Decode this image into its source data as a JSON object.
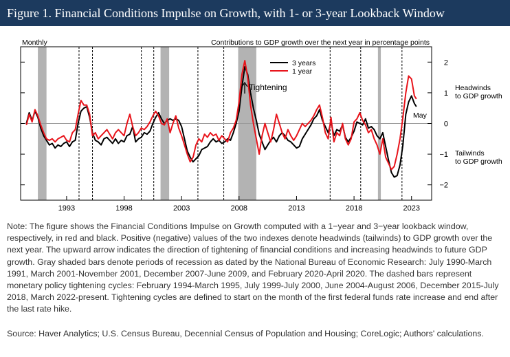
{
  "figure_title": "Figure 1. Financial Conditions Impulse on Growth, with 1- or 3-year Lookback Window",
  "note": "Note: The figure shows the Financial Conditions Impulse on Growth computed with a 1−year and 3−year lookback window, respectively, in red and black. Positive (negative) values of the two indexes denote headwinds (tailwinds) to GDP growth over the next year. The upward arrow indicates the direction of tightening of financial conditions and increasing headwinds to future GDP growth. Gray shaded bars denote periods of recession as dated by the National Bureau of Economic Research: July 1990-March 1991, March 2001-November 2001, December 2007-June 2009, and February 2020-April 2020. The dashed bars represent monetary policy tightening cycles: February 1994-March 1995, July 1999-July 2000, June 2004-August 2006, December 2015-July 2018, March 2022-present. Tightening cycles are defined to start on the month of the first federal funds rate increase and end after the last rate hike.",
  "source": "Source: Haver Analytics; U.S. Census Bureau, Decennial Census of Population and Housing; CoreLogic; Authors' calculations.",
  "chart_data": {
    "type": "line",
    "frequency_label": "Monthly",
    "ylabel": "Contributions to GDP growth over the next year in percentage points",
    "ylim": [
      -2.5,
      2.5
    ],
    "yticks": [
      2,
      1,
      0,
      -1,
      -2
    ],
    "ytick_labels": [
      "2",
      "1",
      "0",
      "−1",
      "−2"
    ],
    "xlim": [
      1989.0,
      2024.75
    ],
    "xticks": [
      1993,
      1998,
      2003,
      2008,
      2013,
      2018,
      2023
    ],
    "xtick_labels": [
      "1993",
      "1998",
      "2003",
      "2008",
      "2013",
      "2018",
      "2023"
    ],
    "legend_position": "top-right",
    "annotations": {
      "tightening": "Tightening",
      "headwinds": "Headwinds to GDP growth",
      "tailwinds": "Tailwinds to GDP growth",
      "last_obs": "May"
    },
    "recessions": [
      [
        1990.5,
        1991.25
      ],
      [
        2001.17,
        2001.92
      ],
      [
        2007.92,
        2009.5
      ],
      [
        2020.08,
        2020.33
      ]
    ],
    "tightening_cycles": [
      [
        1994.08,
        1995.25
      ],
      [
        1999.5,
        2000.58
      ],
      [
        2004.42,
        2006.67
      ],
      [
        2015.92,
        2018.58
      ],
      [
        2022.17,
        2024.75
      ]
    ],
    "series": [
      {
        "name": "3 years",
        "color": "#000000",
        "points": [
          [
            1989.5,
            0.0
          ],
          [
            1989.75,
            0.35
          ],
          [
            1990.0,
            0.1
          ],
          [
            1990.25,
            0.4
          ],
          [
            1990.5,
            0.2
          ],
          [
            1990.75,
            -0.15
          ],
          [
            1991.0,
            -0.4
          ],
          [
            1991.25,
            -0.55
          ],
          [
            1991.5,
            -0.7
          ],
          [
            1991.75,
            -0.65
          ],
          [
            1992.0,
            -0.8
          ],
          [
            1992.25,
            -0.7
          ],
          [
            1992.5,
            -0.75
          ],
          [
            1992.75,
            -0.65
          ],
          [
            1993.0,
            -0.6
          ],
          [
            1993.25,
            -0.75
          ],
          [
            1993.5,
            -0.6
          ],
          [
            1993.75,
            -0.55
          ],
          [
            1994.0,
            0.0
          ],
          [
            1994.25,
            0.4
          ],
          [
            1994.5,
            0.5
          ],
          [
            1994.75,
            0.55
          ],
          [
            1995.0,
            0.2
          ],
          [
            1995.25,
            -0.3
          ],
          [
            1995.5,
            -0.55
          ],
          [
            1995.75,
            -0.6
          ],
          [
            1996.0,
            -0.7
          ],
          [
            1996.25,
            -0.5
          ],
          [
            1996.5,
            -0.45
          ],
          [
            1996.75,
            -0.55
          ],
          [
            1997.0,
            -0.65
          ],
          [
            1997.25,
            -0.5
          ],
          [
            1997.5,
            -0.65
          ],
          [
            1997.75,
            -0.55
          ],
          [
            1998.0,
            -0.6
          ],
          [
            1998.25,
            -0.4
          ],
          [
            1998.5,
            -0.35
          ],
          [
            1998.75,
            -0.1
          ],
          [
            1999.0,
            -0.6
          ],
          [
            1999.25,
            -0.5
          ],
          [
            1999.5,
            -0.45
          ],
          [
            1999.75,
            -0.3
          ],
          [
            2000.0,
            -0.35
          ],
          [
            2000.25,
            -0.25
          ],
          [
            2000.5,
            0.0
          ],
          [
            2000.75,
            0.2
          ],
          [
            2001.0,
            0.35
          ],
          [
            2001.25,
            0.15
          ],
          [
            2001.5,
            0.0
          ],
          [
            2001.75,
            0.1
          ],
          [
            2002.0,
            0.15
          ],
          [
            2002.25,
            0.1
          ],
          [
            2002.5,
            0.15
          ],
          [
            2002.75,
            0.1
          ],
          [
            2003.0,
            -0.1
          ],
          [
            2003.25,
            -0.5
          ],
          [
            2003.5,
            -0.9
          ],
          [
            2003.75,
            -1.1
          ],
          [
            2004.0,
            -1.25
          ],
          [
            2004.25,
            -1.15
          ],
          [
            2004.5,
            -1.05
          ],
          [
            2004.75,
            -0.85
          ],
          [
            2005.0,
            -0.8
          ],
          [
            2005.25,
            -0.75
          ],
          [
            2005.5,
            -0.6
          ],
          [
            2005.75,
            -0.5
          ],
          [
            2006.0,
            -0.6
          ],
          [
            2006.25,
            -0.55
          ],
          [
            2006.5,
            -0.65
          ],
          [
            2006.75,
            -0.6
          ],
          [
            2007.0,
            -0.5
          ],
          [
            2007.25,
            -0.55
          ],
          [
            2007.5,
            -0.3
          ],
          [
            2007.75,
            0.0
          ],
          [
            2008.0,
            0.4
          ],
          [
            2008.25,
            1.2
          ],
          [
            2008.5,
            1.85
          ],
          [
            2008.75,
            1.6
          ],
          [
            2009.0,
            1.0
          ],
          [
            2009.25,
            0.5
          ],
          [
            2009.5,
            0.1
          ],
          [
            2009.75,
            -0.35
          ],
          [
            2010.0,
            -0.6
          ],
          [
            2010.25,
            -0.85
          ],
          [
            2010.5,
            -0.7
          ],
          [
            2010.75,
            -0.55
          ],
          [
            2011.0,
            -0.45
          ],
          [
            2011.25,
            -0.6
          ],
          [
            2011.5,
            -0.4
          ],
          [
            2011.75,
            -0.3
          ],
          [
            2012.0,
            -0.4
          ],
          [
            2012.25,
            -0.55
          ],
          [
            2012.5,
            -0.6
          ],
          [
            2012.75,
            -0.7
          ],
          [
            2013.0,
            -0.8
          ],
          [
            2013.25,
            -0.75
          ],
          [
            2013.5,
            -0.5
          ],
          [
            2013.75,
            -0.35
          ],
          [
            2014.0,
            -0.2
          ],
          [
            2014.25,
            -0.05
          ],
          [
            2014.5,
            0.15
          ],
          [
            2014.75,
            0.25
          ],
          [
            2015.0,
            0.45
          ],
          [
            2015.25,
            0.1
          ],
          [
            2015.5,
            -0.1
          ],
          [
            2015.75,
            -0.3
          ],
          [
            2016.0,
            0.05
          ],
          [
            2016.25,
            -0.4
          ],
          [
            2016.5,
            -0.2
          ],
          [
            2016.75,
            -0.25
          ],
          [
            2017.0,
            -0.05
          ],
          [
            2017.25,
            -0.45
          ],
          [
            2017.5,
            -0.6
          ],
          [
            2017.75,
            -0.45
          ],
          [
            2018.0,
            -0.25
          ],
          [
            2018.25,
            0.05
          ],
          [
            2018.5,
            0.0
          ],
          [
            2018.75,
            -0.05
          ],
          [
            2019.0,
            0.15
          ],
          [
            2019.25,
            -0.15
          ],
          [
            2019.5,
            -0.1
          ],
          [
            2019.75,
            -0.2
          ],
          [
            2020.0,
            -0.4
          ],
          [
            2020.25,
            -0.5
          ],
          [
            2020.5,
            -0.3
          ],
          [
            2020.75,
            -0.75
          ],
          [
            2021.0,
            -1.2
          ],
          [
            2021.25,
            -1.6
          ],
          [
            2021.5,
            -1.75
          ],
          [
            2021.75,
            -1.7
          ],
          [
            2022.0,
            -1.35
          ],
          [
            2022.25,
            -0.7
          ],
          [
            2022.5,
            0.3
          ],
          [
            2022.75,
            0.7
          ],
          [
            2023.0,
            0.9
          ],
          [
            2023.25,
            0.65
          ],
          [
            2023.42,
            0.55
          ]
        ]
      },
      {
        "name": "1 year",
        "color": "#e8141b",
        "points": [
          [
            1989.5,
            -0.05
          ],
          [
            1989.75,
            0.3
          ],
          [
            1990.0,
            0.05
          ],
          [
            1990.25,
            0.45
          ],
          [
            1990.5,
            0.25
          ],
          [
            1990.75,
            -0.05
          ],
          [
            1991.0,
            -0.3
          ],
          [
            1991.25,
            -0.5
          ],
          [
            1991.5,
            -0.55
          ],
          [
            1991.75,
            -0.5
          ],
          [
            1992.0,
            -0.6
          ],
          [
            1992.25,
            -0.5
          ],
          [
            1992.5,
            -0.45
          ],
          [
            1992.75,
            -0.4
          ],
          [
            1993.0,
            -0.55
          ],
          [
            1993.25,
            -0.6
          ],
          [
            1993.5,
            -0.3
          ],
          [
            1993.75,
            -0.2
          ],
          [
            1994.0,
            0.3
          ],
          [
            1994.25,
            0.75
          ],
          [
            1994.5,
            0.6
          ],
          [
            1994.75,
            0.6
          ],
          [
            1995.0,
            0.3
          ],
          [
            1995.25,
            -0.4
          ],
          [
            1995.5,
            -0.3
          ],
          [
            1995.75,
            -0.5
          ],
          [
            1996.0,
            -0.4
          ],
          [
            1996.25,
            -0.3
          ],
          [
            1996.5,
            -0.2
          ],
          [
            1996.75,
            -0.35
          ],
          [
            1997.0,
            -0.5
          ],
          [
            1997.25,
            -0.3
          ],
          [
            1997.5,
            -0.2
          ],
          [
            1997.75,
            -0.3
          ],
          [
            1998.0,
            -0.4
          ],
          [
            1998.25,
            0.0
          ],
          [
            1998.5,
            0.3
          ],
          [
            1998.75,
            -0.1
          ],
          [
            1999.0,
            -0.4
          ],
          [
            1999.25,
            -0.3
          ],
          [
            1999.5,
            -0.15
          ],
          [
            1999.75,
            -0.2
          ],
          [
            2000.0,
            -0.1
          ],
          [
            2000.25,
            0.05
          ],
          [
            2000.5,
            0.25
          ],
          [
            2000.75,
            0.4
          ],
          [
            2001.0,
            0.25
          ],
          [
            2001.25,
            0.0
          ],
          [
            2001.5,
            -0.05
          ],
          [
            2001.75,
            0.15
          ],
          [
            2002.0,
            -0.3
          ],
          [
            2002.25,
            0.0
          ],
          [
            2002.5,
            0.25
          ],
          [
            2002.75,
            -0.15
          ],
          [
            2003.0,
            -0.4
          ],
          [
            2003.25,
            -0.7
          ],
          [
            2003.5,
            -1.0
          ],
          [
            2003.75,
            -1.25
          ],
          [
            2004.0,
            -1.1
          ],
          [
            2004.25,
            -0.7
          ],
          [
            2004.5,
            -0.5
          ],
          [
            2004.75,
            -0.6
          ],
          [
            2005.0,
            -0.35
          ],
          [
            2005.25,
            -0.45
          ],
          [
            2005.5,
            -0.3
          ],
          [
            2005.75,
            -0.4
          ],
          [
            2006.0,
            -0.35
          ],
          [
            2006.25,
            -0.55
          ],
          [
            2006.5,
            -0.4
          ],
          [
            2006.75,
            -0.5
          ],
          [
            2007.0,
            -0.6
          ],
          [
            2007.25,
            -0.3
          ],
          [
            2007.5,
            -0.15
          ],
          [
            2007.75,
            0.1
          ],
          [
            2008.0,
            0.7
          ],
          [
            2008.25,
            1.6
          ],
          [
            2008.5,
            2.05
          ],
          [
            2008.75,
            1.5
          ],
          [
            2009.0,
            0.6
          ],
          [
            2009.25,
            0.0
          ],
          [
            2009.5,
            -0.5
          ],
          [
            2009.75,
            -1.0
          ],
          [
            2010.0,
            -0.4
          ],
          [
            2010.25,
            0.0
          ],
          [
            2010.5,
            -0.3
          ],
          [
            2010.75,
            -0.6
          ],
          [
            2011.0,
            -0.2
          ],
          [
            2011.25,
            0.3
          ],
          [
            2011.5,
            0.0
          ],
          [
            2011.75,
            -0.3
          ],
          [
            2012.0,
            -0.5
          ],
          [
            2012.25,
            -0.2
          ],
          [
            2012.5,
            -0.4
          ],
          [
            2012.75,
            -0.55
          ],
          [
            2013.0,
            -0.4
          ],
          [
            2013.25,
            -0.2
          ],
          [
            2013.5,
            0.0
          ],
          [
            2013.75,
            -0.1
          ],
          [
            2014.0,
            0.0
          ],
          [
            2014.25,
            0.1
          ],
          [
            2014.5,
            0.25
          ],
          [
            2014.75,
            0.45
          ],
          [
            2015.0,
            0.6
          ],
          [
            2015.25,
            0.2
          ],
          [
            2015.5,
            -0.3
          ],
          [
            2015.75,
            -0.5
          ],
          [
            2016.0,
            0.2
          ],
          [
            2016.25,
            -0.6
          ],
          [
            2016.5,
            -0.3
          ],
          [
            2016.75,
            -0.4
          ],
          [
            2017.0,
            0.0
          ],
          [
            2017.25,
            -0.5
          ],
          [
            2017.5,
            -0.7
          ],
          [
            2017.75,
            -0.5
          ],
          [
            2018.0,
            0.05
          ],
          [
            2018.25,
            0.15
          ],
          [
            2018.5,
            0.35
          ],
          [
            2018.75,
            0.1
          ],
          [
            2019.0,
            -0.05
          ],
          [
            2019.25,
            -0.3
          ],
          [
            2019.5,
            -0.2
          ],
          [
            2019.75,
            -0.5
          ],
          [
            2020.0,
            -0.7
          ],
          [
            2020.25,
            -1.0
          ],
          [
            2020.5,
            -0.5
          ],
          [
            2020.75,
            -1.1
          ],
          [
            2021.0,
            -1.3
          ],
          [
            2021.25,
            -1.5
          ],
          [
            2021.5,
            -1.4
          ],
          [
            2021.75,
            -1.0
          ],
          [
            2022.0,
            -0.5
          ],
          [
            2022.25,
            0.2
          ],
          [
            2022.5,
            1.0
          ],
          [
            2022.75,
            1.55
          ],
          [
            2023.0,
            1.45
          ],
          [
            2023.25,
            0.9
          ],
          [
            2023.42,
            0.8
          ]
        ]
      }
    ]
  }
}
